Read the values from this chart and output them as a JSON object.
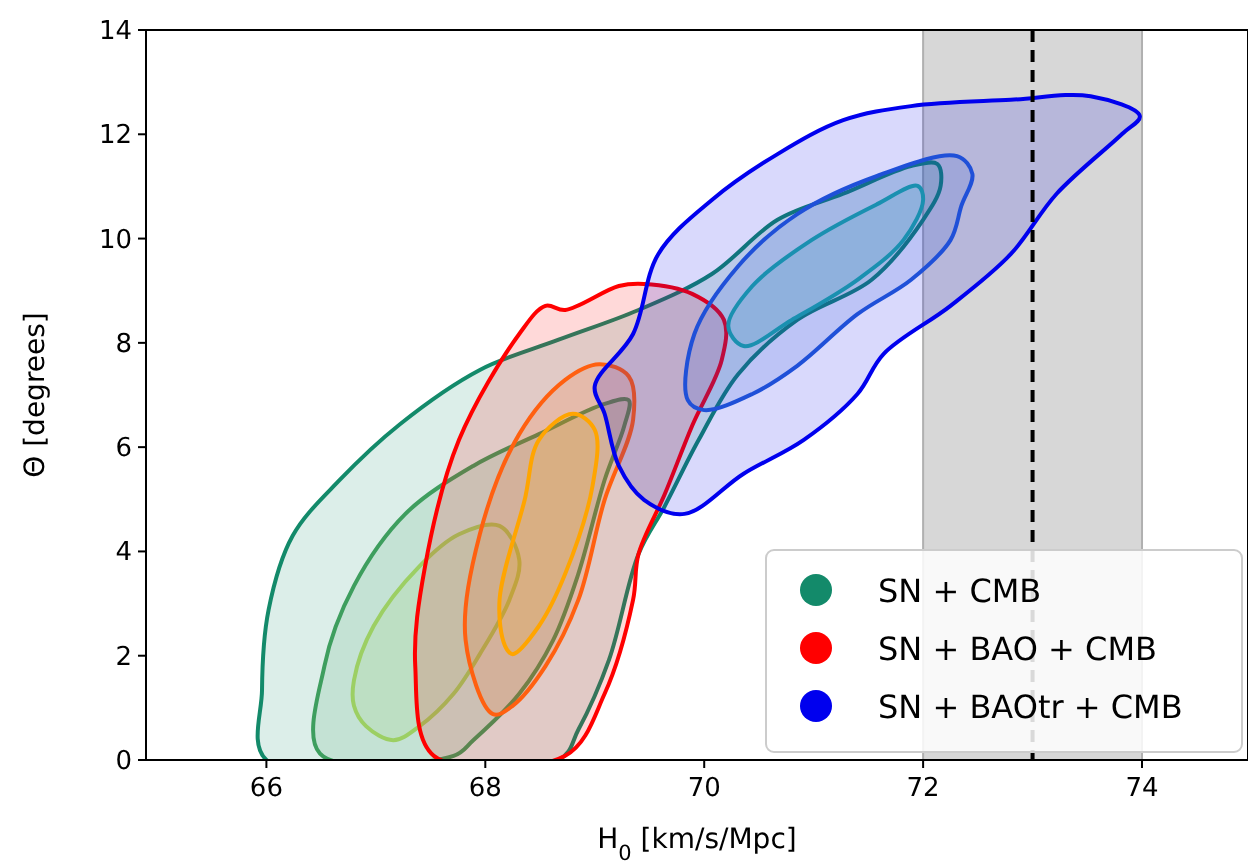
{
  "chart_data": {
    "type": "area",
    "xlabel": "H$_{0}$ [km/s/Mpc]",
    "ylabel": "Θ [degrees]",
    "xlim": [
      64.9,
      74.95
    ],
    "xticks": [
      66,
      68,
      70,
      72,
      74
    ],
    "ylim": [
      0,
      14
    ],
    "yticks": [
      0,
      2,
      4,
      6,
      8,
      10,
      12,
      14
    ],
    "grid": false,
    "legend": "bottom right",
    "marker": "none",
    "line_style": "solid",
    "bands": [
      {
        "axis": "x",
        "from": 72,
        "to": 74,
        "color": "#b0b0b0"
      }
    ],
    "ref_lines": [
      {
        "axis": "x",
        "value": 73,
        "color": "#000000",
        "line_style": "dashed"
      }
    ],
    "series": [
      {
        "name": "SN + CMB",
        "color": "#138a6a",
        "x": [
          66.0,
          65.96,
          66.02,
          66.24,
          66.67,
          67.22,
          67.95,
          68.67,
          69.4,
          70.07,
          70.67,
          71.27,
          71.89,
          72.13,
          72.16,
          72.0,
          71.53,
          70.85,
          70.31,
          69.95,
          69.64,
          69.4,
          69.13,
          68.85,
          68.67
        ],
        "values": [
          0,
          1.34,
          2.88,
          4.3,
          5.37,
          6.44,
          7.48,
          8.06,
          8.63,
          9.32,
          10.36,
          10.86,
          11.39,
          11.43,
          11.01,
          10.36,
          9.21,
          8.44,
          7.4,
          6.14,
          4.87,
          3.95,
          1.92,
          0.58,
          0
        ]
      },
      {
        "color": "#3e9e5e",
        "x": [
          66.49,
          66.53,
          66.8,
          67.27,
          67.89,
          68.49,
          69.09,
          69.31,
          69.27,
          69.09,
          68.85,
          68.62,
          68.31,
          67.89,
          67.71
        ],
        "values": [
          0.12,
          1.8,
          3.34,
          4.72,
          5.64,
          6.25,
          6.83,
          6.9,
          6.41,
          5.37,
          3.57,
          2.3,
          1.27,
          0.38,
          0.08
        ]
      },
      {
        "color": "#9ccf63",
        "x": [
          66.8,
          66.98,
          67.4,
          67.76,
          68.13,
          68.31,
          68.22,
          67.95,
          67.71,
          67.4,
          67.16,
          66.91,
          66.8
        ],
        "values": [
          1.53,
          2.57,
          3.72,
          4.33,
          4.49,
          3.84,
          3.07,
          2.03,
          1.27,
          0.65,
          0.38,
          0.65,
          1.04
        ]
      },
      {
        "name": "SN + BAO + CMB",
        "color": "#ff0000",
        "x": [
          67.53,
          67.36,
          67.45,
          67.76,
          68.31,
          68.55,
          68.73,
          69.22,
          69.45,
          69.89,
          70.18,
          70.16,
          69.89,
          69.64,
          69.4,
          69.35,
          69.09,
          68.73
        ],
        "values": [
          0.08,
          1.8,
          3.72,
          6.14,
          8.17,
          8.71,
          8.63,
          9.09,
          9.13,
          8.94,
          8.44,
          7.67,
          6.41,
          5.1,
          3.95,
          3.07,
          1.27,
          0.08
        ]
      },
      {
        "color": "#ff6010",
        "x": [
          68.07,
          67.82,
          67.95,
          68.31,
          68.73,
          69.04,
          69.31,
          69.35,
          69.09,
          68.85,
          68.55,
          68.25
        ],
        "values": [
          0.88,
          2.3,
          4.33,
          6.25,
          7.29,
          7.59,
          7.36,
          6.52,
          4.99,
          3.07,
          1.8,
          1.04
        ]
      },
      {
        "color": "#ffa500",
        "x": [
          68.18,
          68.13,
          68.36,
          68.49,
          68.8,
          69.0,
          68.98,
          68.73,
          68.49,
          68.25
        ],
        "values": [
          2.19,
          3.07,
          4.99,
          6.14,
          6.64,
          6.33,
          5.26,
          3.57,
          2.57,
          2.03
        ]
      },
      {
        "name": "SN + BAOtr + CMB",
        "color": "#0000ee",
        "x": [
          69.0,
          69.35,
          69.58,
          70.07,
          70.67,
          71.27,
          71.89,
          72.8,
          73.53,
          73.98,
          73.82,
          73.22,
          72.8,
          72.25,
          71.64,
          71.4,
          70.91,
          70.36,
          69.82,
          69.45,
          69.22,
          69.09
        ],
        "values": [
          7.17,
          8.17,
          9.7,
          10.74,
          11.62,
          12.27,
          12.54,
          12.66,
          12.73,
          12.35,
          12.01,
          10.86,
          9.7,
          8.71,
          7.79,
          7.02,
          6.14,
          5.49,
          4.72,
          4.99,
          5.64,
          6.64
        ]
      },
      {
        "color": "#1f50d8",
        "x": [
          69.85,
          69.91,
          70.31,
          70.85,
          71.58,
          72.31,
          72.45,
          72.35,
          72.25,
          71.89,
          71.4,
          70.85,
          70.44,
          70.0
        ],
        "values": [
          6.9,
          8.17,
          9.47,
          10.47,
          11.2,
          11.58,
          11.24,
          10.63,
          9.97,
          9.21,
          8.55,
          7.56,
          7.02,
          6.71
        ]
      },
      {
        "color": "#1a90b0",
        "x": [
          70.22,
          70.44,
          70.98,
          71.58,
          71.95,
          72.0,
          71.82,
          71.4,
          70.8,
          70.36
        ],
        "values": [
          8.32,
          9.09,
          9.97,
          10.66,
          11.01,
          10.74,
          9.97,
          9.21,
          8.44,
          7.94
        ]
      }
    ]
  }
}
